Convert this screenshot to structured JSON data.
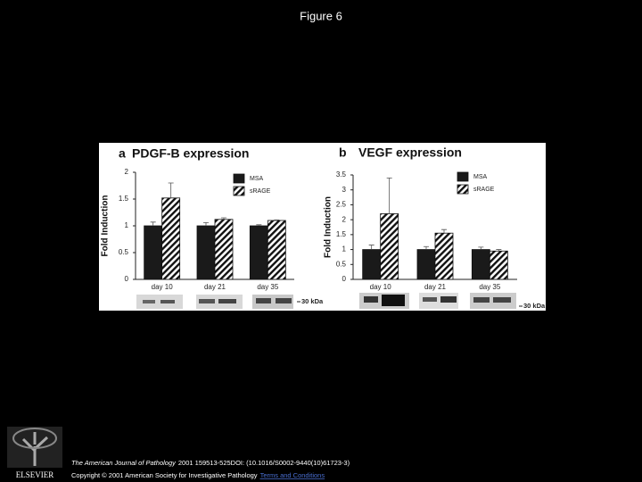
{
  "title": "Figure 6",
  "chart_data": [
    {
      "type": "bar",
      "panel": "a",
      "title": "PDGF-B expression",
      "y_label": "Fold Induction",
      "categories": [
        "day 10",
        "day 21",
        "day 35"
      ],
      "series": [
        {
          "name": "MSA",
          "color": "#1a1a1a",
          "hatch": false,
          "values": [
            1.0,
            1.0,
            1.0
          ],
          "errors": [
            0.07,
            0.06,
            0.02
          ]
        },
        {
          "name": "sRAGE",
          "color": "#ffffff",
          "hatch": true,
          "values": [
            1.52,
            1.12,
            1.1
          ],
          "errors": [
            0.28,
            0.03,
            0.01
          ]
        }
      ],
      "ylim": [
        0,
        2
      ],
      "yticks": [
        0,
        0.5,
        1,
        1.5,
        2
      ],
      "blot_label": "30 kDa"
    },
    {
      "type": "bar",
      "panel": "b",
      "title": "VEGF expression",
      "y_label": "Fold Induction",
      "categories": [
        "day 10",
        "day 21",
        "day 35"
      ],
      "series": [
        {
          "name": "MSA",
          "color": "#1a1a1a",
          "hatch": false,
          "values": [
            1.0,
            1.0,
            1.0
          ],
          "errors": [
            0.15,
            0.1,
            0.08
          ]
        },
        {
          "name": "sRAGE",
          "color": "#ffffff",
          "hatch": true,
          "values": [
            2.2,
            1.55,
            0.95
          ],
          "errors": [
            1.2,
            0.12,
            0.05
          ]
        }
      ],
      "ylim": [
        0,
        3.5
      ],
      "yticks": [
        0,
        0.5,
        1,
        1.5,
        2,
        2.5,
        3,
        3.5
      ],
      "blot_label": "30 kDa"
    }
  ],
  "footer": {
    "journal": "The American Journal of Pathology",
    "citation": "2001 159513-525DOI: (10.1016/S0002-9440(10)61723-3)",
    "copyright": "Copyright © 2001 American Society for Investigative Pathology",
    "link": "Terms and Conditions",
    "logo": "ELSEVIER"
  }
}
